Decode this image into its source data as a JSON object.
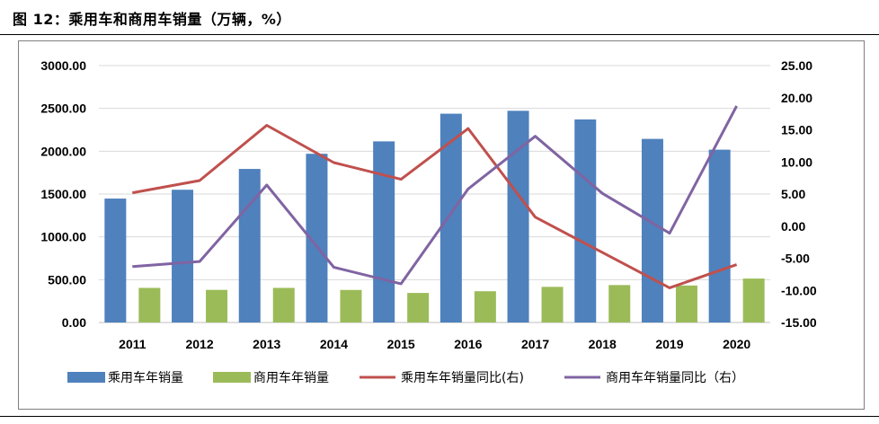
{
  "figure": {
    "title": "图 12：乘用车和商用车销量（万辆，%）"
  },
  "chart_data": {
    "type": "bar",
    "categories": [
      "2011",
      "2012",
      "2013",
      "2014",
      "2015",
      "2016",
      "2017",
      "2018",
      "2019",
      "2020"
    ],
    "series": [
      {
        "name": "乘用车年销量",
        "type": "bar",
        "axis": "left",
        "color": "#4f81bd",
        "values": [
          1447,
          1550,
          1793,
          1970,
          2115,
          2438,
          2472,
          2371,
          2144,
          2018
        ]
      },
      {
        "name": "商用车年销量",
        "type": "bar",
        "axis": "left",
        "color": "#9bbb59",
        "values": [
          404,
          381,
          404,
          380,
          345,
          365,
          416,
          437,
          432,
          513
        ]
      },
      {
        "name": "乘用车年销量同比(右)",
        "type": "line",
        "axis": "right",
        "color": "#c0504d",
        "values": [
          5.2,
          7.1,
          15.7,
          9.9,
          7.3,
          15.2,
          1.4,
          -4.1,
          -9.6,
          -6.0
        ]
      },
      {
        "name": "商用车年销量同比（右）",
        "type": "line",
        "axis": "right",
        "color": "#8064a2",
        "values": [
          -6.3,
          -5.5,
          6.4,
          -6.4,
          -8.97,
          5.8,
          14.0,
          5.1,
          -1.1,
          18.7
        ]
      }
    ],
    "left_axis": {
      "ylim": [
        0,
        3000
      ],
      "ticks": [
        "0.00",
        "500.00",
        "1000.00",
        "1500.00",
        "2000.00",
        "2500.00",
        "3000.00"
      ]
    },
    "right_axis": {
      "ylim": [
        -15,
        25
      ],
      "ticks": [
        "-15.00",
        "-10.00",
        "-5.00",
        "0.00",
        "5.00",
        "10.00",
        "15.00",
        "20.00",
        "25.00"
      ]
    },
    "grid": true,
    "legend_position": "bottom"
  }
}
